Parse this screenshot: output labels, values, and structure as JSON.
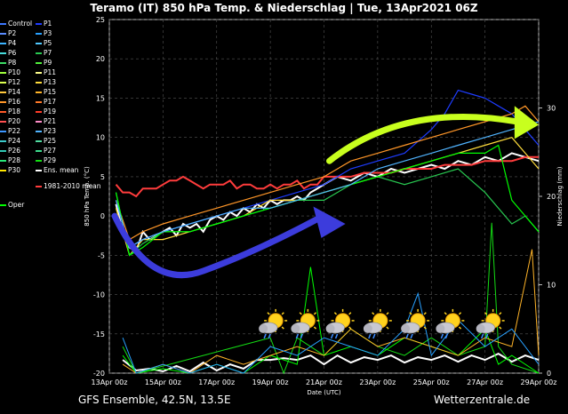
{
  "title": "Teramo  (IT)  850 hPa Temp. & Niederschlag | Tue, 13Apr2021 06Z",
  "footer_left": "GFS Ensemble, 42.5N, 13.5E",
  "footer_right": "Wetterzentrale.de",
  "legend": [
    {
      "label": "Control",
      "color": "#3c78ff"
    },
    {
      "label": "P1",
      "color": "#1e3cff"
    },
    {
      "label": "P2",
      "color": "#5a8cff"
    },
    {
      "label": "P3",
      "color": "#28a0ff"
    },
    {
      "label": "P4",
      "color": "#3cb4ff"
    },
    {
      "label": "P5",
      "color": "#50c8ff"
    },
    {
      "label": "P6",
      "color": "#46dcdc"
    },
    {
      "label": "P7",
      "color": "#28c850"
    },
    {
      "label": "P8",
      "color": "#3cdc64"
    },
    {
      "label": "P9",
      "color": "#50f03c"
    },
    {
      "label": "P10",
      "color": "#a0ff3c"
    },
    {
      "label": "P11",
      "color": "#ffff8c"
    },
    {
      "label": "P12",
      "color": "#dcff50"
    },
    {
      "label": "P13",
      "color": "#ffdc3c"
    },
    {
      "label": "P14",
      "color": "#ffc83c"
    },
    {
      "label": "P15",
      "color": "#ffb428"
    },
    {
      "label": "P16",
      "color": "#ff9628"
    },
    {
      "label": "P17",
      "color": "#ff7828"
    },
    {
      "label": "P18",
      "color": "#ff5a28"
    },
    {
      "label": "P19",
      "color": "#ff3c28"
    },
    {
      "label": "P20",
      "color": "#ff5050"
    },
    {
      "label": "P21",
      "color": "#ff8cc8"
    },
    {
      "label": "P22",
      "color": "#3c96ff"
    },
    {
      "label": "P23",
      "color": "#50b4ff"
    },
    {
      "label": "P24",
      "color": "#3cc8c8"
    },
    {
      "label": "P25",
      "color": "#50dca0"
    },
    {
      "label": "P26",
      "color": "#32c8b4"
    },
    {
      "label": "P27",
      "color": "#3cdc8c"
    },
    {
      "label": "P28",
      "color": "#28e678"
    },
    {
      "label": "P29",
      "color": "#14dc14"
    },
    {
      "label": "P30",
      "color": "#ffe600"
    },
    {
      "label": "Ens. mean",
      "color": "#ffffff"
    },
    {
      "label": "1981-2010 mean",
      "color": "#ff3c3c"
    },
    {
      "label": "Oper",
      "color": "#00ff00"
    }
  ],
  "chart_data": {
    "type": "line",
    "ylabel": "850 hPa Temp. (°C)",
    "y2label": "Niederschlag (mm)",
    "xlabel": "Date (UTC)",
    "ylim": [
      -20,
      25
    ],
    "y2lim": [
      0,
      40
    ],
    "yticks": [
      -20,
      -15,
      -10,
      -5,
      0,
      5,
      10,
      15,
      20,
      25
    ],
    "y2ticks": [
      0,
      10,
      20,
      30
    ],
    "xrange_days": [
      0,
      16
    ],
    "xticks": [
      {
        "day": 0,
        "label": "13Apr 00z"
      },
      {
        "day": 2,
        "label": "15Apr 00z"
      },
      {
        "day": 4,
        "label": "17Apr 00z"
      },
      {
        "day": 6,
        "label": "19Apr 00z"
      },
      {
        "day": 8,
        "label": "21Apr 00z"
      },
      {
        "day": 10,
        "label": "23Apr 00z"
      },
      {
        "day": 12,
        "label": "25Apr 00z"
      },
      {
        "day": 14,
        "label": "27Apr 00z"
      },
      {
        "day": 16,
        "label": "29Apr 00z"
      }
    ],
    "grid": true,
    "series": [
      {
        "name": "Ens. mean",
        "color": "#ffffff",
        "x": [
          0.25,
          0.5,
          0.75,
          1,
          1.25,
          1.5,
          1.75,
          2,
          2.25,
          2.5,
          2.75,
          3,
          3.25,
          3.5,
          3.75,
          4,
          4.25,
          4.5,
          4.75,
          5,
          5.25,
          5.5,
          5.75,
          6,
          6.25,
          6.5,
          6.75,
          7,
          7.25,
          7.5,
          7.75,
          8,
          8.5,
          9,
          9.5,
          10,
          10.5,
          11,
          11.5,
          12,
          12.5,
          13,
          13.5,
          14,
          14.5,
          15,
          15.5,
          16
        ],
        "y": [
          1.5,
          -2,
          -4,
          -4.5,
          -2,
          -3,
          -2.5,
          -2,
          -1.5,
          -2.5,
          -1,
          -1.5,
          -1,
          -2,
          -0.5,
          0,
          -0.5,
          0.5,
          0,
          1,
          0.5,
          1.5,
          1,
          2,
          1.5,
          2,
          2,
          2.5,
          2,
          3,
          3.5,
          4,
          5,
          4.5,
          5.5,
          5,
          6,
          5.5,
          6,
          6.5,
          6,
          7,
          6.5,
          7.5,
          7,
          8,
          7.5,
          7
        ]
      },
      {
        "name": "1981-2010 mean",
        "color": "#ff3c3c",
        "x": [
          0.25,
          0.5,
          0.75,
          1,
          1.25,
          1.5,
          1.75,
          2,
          2.25,
          2.5,
          2.75,
          3,
          3.25,
          3.5,
          3.75,
          4,
          4.25,
          4.5,
          4.75,
          5,
          5.25,
          5.5,
          5.75,
          6,
          6.25,
          6.5,
          6.75,
          7,
          7.25,
          7.5,
          7.75,
          8,
          8.5,
          9,
          9.5,
          10,
          10.5,
          11,
          11.5,
          12,
          12.5,
          13,
          13.5,
          14,
          14.5,
          15,
          15.5,
          16
        ],
        "y": [
          4,
          3,
          3,
          2.5,
          3.5,
          3.5,
          3.5,
          4,
          4.5,
          4.5,
          5,
          4.5,
          4,
          3.5,
          4,
          4,
          4,
          4.5,
          3.5,
          4,
          4,
          3.5,
          3.5,
          4,
          3.5,
          4,
          4,
          4.5,
          3.5,
          4,
          4,
          5,
          5,
          5,
          5.5,
          5.5,
          5.5,
          6,
          6,
          6,
          6.5,
          6.5,
          6.5,
          7,
          7,
          7,
          7.5,
          7.5
        ]
      },
      {
        "name": "P1",
        "color": "#1e3cff",
        "x": [
          0.25,
          0.75,
          1.25,
          2,
          3,
          4,
          5,
          6,
          7,
          8,
          9,
          10,
          11,
          12,
          12.5,
          13,
          13.5,
          14,
          14.5,
          15,
          15.5,
          16
        ],
        "y": [
          2,
          -4,
          -3,
          -2,
          -1,
          0,
          1,
          2,
          3,
          4,
          6,
          7,
          8,
          11,
          13,
          16,
          15.5,
          15,
          14,
          13,
          11,
          9
        ]
      },
      {
        "name": "P13",
        "color": "#ffdc3c",
        "x": [
          0.25,
          0.75,
          1.25,
          2,
          3,
          4,
          5,
          6,
          7,
          8,
          9,
          10,
          11,
          12,
          13,
          14,
          15,
          15.5,
          16
        ],
        "y": [
          1,
          -5,
          -3,
          -3,
          -2,
          -1,
          0,
          2,
          2,
          3,
          4,
          5,
          6,
          7,
          8,
          9,
          10,
          8,
          6
        ]
      },
      {
        "name": "P16",
        "color": "#ff9628",
        "x": [
          0.25,
          0.75,
          1.25,
          2,
          3,
          4,
          5,
          6,
          7,
          8,
          9,
          10,
          11,
          12,
          13,
          14,
          15,
          15.5,
          16
        ],
        "y": [
          2,
          -3,
          -2,
          -1,
          0,
          1,
          2,
          3,
          4,
          5,
          7,
          8,
          9,
          10,
          11,
          12,
          13,
          14,
          12
        ]
      },
      {
        "name": "P7",
        "color": "#28c850",
        "x": [
          0.25,
          0.75,
          1.25,
          2,
          3,
          4,
          5,
          6,
          7,
          8,
          9,
          10,
          11,
          12,
          13,
          14,
          15,
          15.5,
          16
        ],
        "y": [
          3,
          -5,
          -3.5,
          -2,
          -2,
          -1,
          0,
          1,
          2,
          2,
          4,
          5,
          4,
          5,
          6,
          3,
          -1,
          0,
          -2
        ]
      },
      {
        "name": "Oper",
        "color": "#00ff00",
        "x": [
          0.25,
          0.75,
          1.25,
          2,
          3,
          4,
          5,
          6,
          7,
          8,
          9,
          10,
          11,
          12,
          13,
          14,
          14.5,
          15,
          15.5,
          16
        ],
        "y": [
          3,
          -5,
          -4,
          -2,
          -2,
          -1,
          0,
          1,
          2,
          3,
          4,
          5,
          6,
          7,
          8,
          8,
          9,
          2,
          0,
          -2
        ]
      },
      {
        "name": "P23",
        "color": "#50b4ff",
        "x": [
          0.25,
          0.75,
          1.25,
          2,
          3,
          4,
          5,
          6,
          7,
          8,
          9,
          10,
          11,
          12,
          13,
          14,
          15,
          16
        ],
        "y": [
          2,
          -4,
          -3,
          -2,
          -1,
          0,
          1,
          1,
          2,
          3,
          4,
          6,
          7,
          8,
          9,
          10,
          11,
          12
        ]
      }
    ],
    "precip_series": [
      {
        "name": "Ens. mean",
        "color": "#ffffff",
        "x": [
          0.5,
          1,
          1.5,
          2,
          2.5,
          3,
          3.5,
          4,
          4.5,
          5,
          5.5,
          6,
          6.5,
          7,
          7.5,
          8,
          8.5,
          9,
          9.5,
          10,
          10.5,
          11,
          11.5,
          12,
          12.5,
          13,
          13.5,
          14,
          14.5,
          15,
          15.5,
          16
        ],
        "y": [
          1.5,
          0.3,
          0.5,
          0.2,
          0.8,
          0.2,
          1.2,
          0.3,
          1,
          0.5,
          1.5,
          1.5,
          1.7,
          1.5,
          2,
          1,
          2,
          1.2,
          1.8,
          1.5,
          2,
          1.2,
          1.8,
          1.5,
          2,
          1.3,
          2,
          1.5,
          2.2,
          1.3,
          2,
          1.5
        ]
      },
      {
        "name": "P29",
        "color": "#14dc14",
        "x": [
          0.5,
          1,
          3.5,
          6,
          6.5,
          7,
          8,
          9,
          10,
          11,
          12,
          13,
          14,
          14.25,
          14.5,
          15,
          16
        ],
        "y": [
          3,
          0,
          2,
          4,
          0,
          4,
          2,
          5,
          3,
          2,
          4,
          2,
          3,
          17,
          3,
          1,
          0
        ]
      },
      {
        "name": "Oper",
        "color": "#00ff00",
        "x": [
          0.5,
          1,
          2,
          3,
          4,
          5,
          6,
          7,
          7.5,
          8,
          9,
          10,
          11,
          12,
          13,
          14,
          14.5,
          15,
          16
        ],
        "y": [
          2,
          0,
          0.5,
          0,
          1,
          0,
          2,
          1,
          12,
          2,
          3,
          2,
          4,
          3,
          2,
          5,
          1,
          2,
          0
        ]
      },
      {
        "name": "P15",
        "color": "#ffb428",
        "x": [
          0.5,
          1,
          2,
          3,
          4,
          5,
          6,
          7,
          8,
          9,
          10,
          11,
          12,
          13,
          14,
          15,
          15.75,
          16
        ],
        "y": [
          1,
          0,
          1,
          0,
          2,
          1,
          2,
          3,
          2,
          5,
          3,
          4,
          3,
          2,
          4,
          3,
          14,
          2
        ]
      },
      {
        "name": "P3",
        "color": "#28a0ff",
        "x": [
          0.5,
          1,
          2,
          3,
          4,
          5,
          6,
          7,
          8,
          9,
          10,
          11,
          11.5,
          12,
          13,
          14,
          15,
          16
        ],
        "y": [
          4,
          0,
          1,
          0,
          1,
          0,
          3,
          2,
          4,
          3,
          2,
          5,
          9,
          2,
          6,
          3,
          5,
          1
        ]
      }
    ],
    "annotations": [
      {
        "type": "arrow",
        "color": "#3c3cdc"
      },
      {
        "type": "arrow",
        "color": "#c8ff1e"
      }
    ],
    "weather_icons": [
      {
        "day": 6,
        "icon": "sun-cloud-rain-icon"
      },
      {
        "day": 7.2,
        "icon": "sun-cloud-rain-icon"
      },
      {
        "day": 8.5,
        "icon": "sun-cloud-rain-icon"
      },
      {
        "day": 9.9,
        "icon": "sun-cloud-rain-icon"
      },
      {
        "day": 11.3,
        "icon": "sun-cloud-rain-icon"
      },
      {
        "day": 12.6,
        "icon": "sun-cloud-rain-icon"
      },
      {
        "day": 14.1,
        "icon": "sun-cloud-rain-icon"
      }
    ]
  }
}
